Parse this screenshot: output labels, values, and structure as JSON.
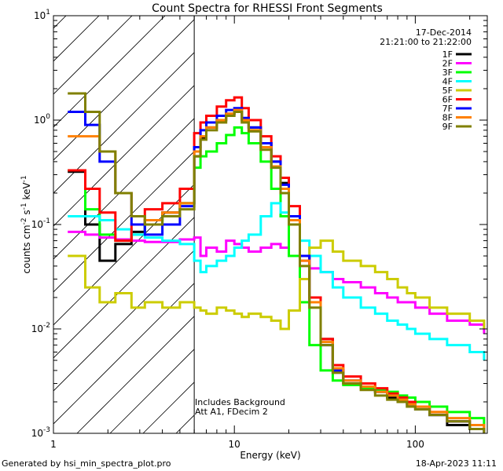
{
  "chart_data": {
    "type": "line",
    "title": "Count Spectra for RHESSI Front Segments",
    "xlabel": "Energy (keV)",
    "ylabel_parts": [
      "counts cm",
      "-2",
      " s",
      "-1",
      " keV",
      "-1"
    ],
    "xscale": "log",
    "yscale": "log",
    "xlim": [
      1,
      250
    ],
    "ylim": [
      0.001,
      10
    ],
    "x_ticks": [
      {
        "value": 1,
        "label": "1"
      },
      {
        "value": 10,
        "label": "10"
      },
      {
        "value": 100,
        "label": "100"
      }
    ],
    "y_ticks": [
      {
        "value": 0.001,
        "mant": "10",
        "exp": "-3"
      },
      {
        "value": 0.01,
        "mant": "10",
        "exp": "-2"
      },
      {
        "value": 0.1,
        "mant": "10",
        "exp": "-1"
      },
      {
        "value": 1,
        "mant": "10",
        "exp": "0"
      },
      {
        "value": 10,
        "mant": "10",
        "exp": "1"
      }
    ],
    "date": "17-Dec-2014",
    "time_range": "21:21:00 to 21:22:00",
    "shaded_region": {
      "from_kev": 1,
      "to_kev": 6
    },
    "annotations": [
      "Includes Background",
      "Att A1, FDecim 2"
    ],
    "x": [
      1.2,
      1.5,
      1.8,
      2.2,
      2.7,
      3.2,
      4.0,
      5.0,
      6.0,
      6.5,
      7.0,
      8.0,
      9.0,
      10,
      11,
      12,
      14,
      16,
      18,
      20,
      23,
      26,
      30,
      35,
      40,
      50,
      60,
      70,
      80,
      90,
      100,
      120,
      150,
      200,
      240
    ],
    "series": [
      {
        "name": "1F",
        "color": "#000000",
        "values": [
          0.32,
          0.1,
          0.045,
          0.065,
          0.085,
          0.11,
          0.13,
          0.16,
          0.45,
          0.68,
          0.85,
          1.0,
          1.15,
          1.2,
          1.0,
          0.85,
          0.6,
          0.4,
          0.25,
          0.12,
          0.05,
          0.02,
          0.008,
          0.004,
          0.003,
          0.0028,
          0.0025,
          0.0022,
          0.002,
          0.0018,
          0.0017,
          0.0015,
          0.0012,
          0.0011,
          0.001
        ]
      },
      {
        "name": "2F",
        "color": "#ff00ff",
        "values": [
          0.085,
          0.08,
          0.075,
          0.072,
          0.07,
          0.068,
          0.068,
          0.072,
          0.075,
          0.05,
          0.06,
          0.055,
          0.07,
          0.065,
          0.06,
          0.055,
          0.06,
          0.065,
          0.06,
          0.05,
          0.045,
          0.038,
          0.035,
          0.03,
          0.028,
          0.025,
          0.022,
          0.02,
          0.018,
          0.018,
          0.016,
          0.014,
          0.012,
          0.011,
          0.009
        ]
      },
      {
        "name": "3F",
        "color": "#00ff00",
        "values": [
          0.33,
          0.14,
          0.08,
          0.07,
          0.08,
          0.1,
          0.12,
          0.16,
          0.35,
          0.45,
          0.5,
          0.6,
          0.72,
          0.85,
          0.75,
          0.6,
          0.4,
          0.22,
          0.12,
          0.05,
          0.018,
          0.007,
          0.004,
          0.0032,
          0.0029,
          0.0027,
          0.0026,
          0.0025,
          0.0023,
          0.0022,
          0.002,
          0.0018,
          0.0016,
          0.0014,
          0.0012
        ]
      },
      {
        "name": "4F",
        "color": "#00ffff",
        "values": [
          0.12,
          0.12,
          0.11,
          0.09,
          0.08,
          0.075,
          0.07,
          0.065,
          0.045,
          0.035,
          0.04,
          0.045,
          0.05,
          0.06,
          0.07,
          0.08,
          0.12,
          0.16,
          0.13,
          0.1,
          0.07,
          0.05,
          0.035,
          0.025,
          0.02,
          0.016,
          0.014,
          0.012,
          0.011,
          0.01,
          0.009,
          0.008,
          0.007,
          0.006,
          0.005
        ]
      },
      {
        "name": "5F",
        "color": "#cccc00",
        "values": [
          0.05,
          0.025,
          0.018,
          0.022,
          0.016,
          0.018,
          0.016,
          0.018,
          0.016,
          0.015,
          0.014,
          0.016,
          0.015,
          0.014,
          0.013,
          0.014,
          0.013,
          0.012,
          0.01,
          0.015,
          0.03,
          0.06,
          0.07,
          0.055,
          0.045,
          0.04,
          0.035,
          0.03,
          0.025,
          0.022,
          0.02,
          0.016,
          0.014,
          0.012,
          0.01
        ]
      },
      {
        "name": "6F",
        "color": "#ff0000",
        "values": [
          0.33,
          0.22,
          0.13,
          0.07,
          0.1,
          0.14,
          0.16,
          0.22,
          0.75,
          0.95,
          1.1,
          1.35,
          1.55,
          1.65,
          1.3,
          1.0,
          0.7,
          0.45,
          0.28,
          0.15,
          0.05,
          0.02,
          0.008,
          0.0045,
          0.0035,
          0.003,
          0.0027,
          0.0024,
          0.0022,
          0.002,
          0.0018,
          0.0016,
          0.0013,
          0.0012,
          0.0011
        ]
      },
      {
        "name": "7F",
        "color": "#0000ff",
        "values": [
          1.2,
          0.9,
          0.4,
          0.2,
          0.1,
          0.08,
          0.1,
          0.15,
          0.55,
          0.8,
          0.95,
          1.1,
          1.25,
          1.3,
          1.05,
          0.85,
          0.6,
          0.4,
          0.24,
          0.12,
          0.05,
          0.018,
          0.007,
          0.004,
          0.0032,
          0.0028,
          0.0025,
          0.0023,
          0.0021,
          0.0019,
          0.0018,
          0.0015,
          0.0013,
          0.0011,
          0.001
        ]
      },
      {
        "name": "8F",
        "color": "#ff8000",
        "values": [
          0.7,
          0.7,
          0.5,
          0.2,
          0.12,
          0.11,
          0.13,
          0.16,
          0.5,
          0.7,
          0.85,
          1.0,
          1.15,
          1.25,
          1.0,
          0.8,
          0.55,
          0.36,
          0.22,
          0.11,
          0.045,
          0.018,
          0.0075,
          0.0042,
          0.0032,
          0.0028,
          0.0025,
          0.0023,
          0.0021,
          0.0019,
          0.0018,
          0.0016,
          0.0014,
          0.0012,
          0.0011
        ]
      },
      {
        "name": "9F",
        "color": "#808000",
        "values": [
          1.8,
          1.2,
          0.5,
          0.2,
          0.12,
          0.1,
          0.12,
          0.14,
          0.45,
          0.65,
          0.8,
          0.95,
          1.1,
          1.2,
          0.95,
          0.78,
          0.52,
          0.35,
          0.2,
          0.1,
          0.04,
          0.016,
          0.007,
          0.0038,
          0.003,
          0.0026,
          0.0023,
          0.0021,
          0.002,
          0.0018,
          0.0017,
          0.0015,
          0.0013,
          0.0011,
          0.001
        ]
      }
    ]
  },
  "footer": {
    "generated_by": "Generated by hsi_min_spectra_plot.pro",
    "timestamp": "18-Apr-2023 11:11"
  }
}
